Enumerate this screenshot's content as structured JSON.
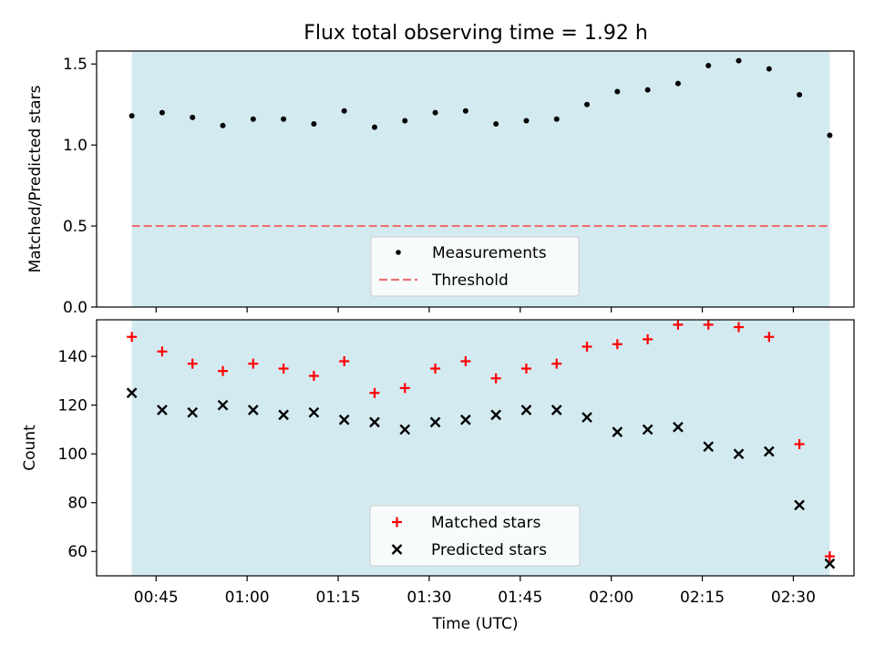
{
  "chart_data": [
    {
      "type": "scatter",
      "title": "Flux total observing time = 1.92 h",
      "xlabel": "",
      "ylabel": "Matched/Predicted stars",
      "ylim": [
        0,
        1.58
      ],
      "yticks": [
        "0.0",
        "0.5",
        "1.0",
        "1.5"
      ],
      "x": [
        "00:41",
        "00:46",
        "00:51",
        "00:56",
        "01:01",
        "01:06",
        "01:11",
        "01:16",
        "01:21",
        "01:26",
        "01:31",
        "01:36",
        "01:41",
        "01:46",
        "01:51",
        "01:56",
        "02:01",
        "02:06",
        "02:11",
        "02:16",
        "02:21",
        "02:26",
        "02:31",
        "02:36"
      ],
      "series": [
        {
          "name": "Measurements",
          "values": [
            1.18,
            1.2,
            1.17,
            1.12,
            1.16,
            1.16,
            1.13,
            1.21,
            1.11,
            1.15,
            1.2,
            1.21,
            1.13,
            1.15,
            1.16,
            1.25,
            1.33,
            1.34,
            1.38,
            1.49,
            1.52,
            1.47,
            1.31,
            1.06
          ],
          "color": "#000000",
          "marker": "dot"
        },
        {
          "name": "Threshold",
          "value": 0.5,
          "color": "#f07070",
          "style": "dashed"
        }
      ],
      "shaded_span": {
        "from": "00:41",
        "to": "02:36",
        "color": "#d4eaf1"
      },
      "legend": "bottom-center",
      "grid": false
    },
    {
      "type": "scatter",
      "xlabel": "Time (UTC)",
      "ylabel": "Count",
      "ylim": [
        50,
        155
      ],
      "yticks": [
        "60",
        "80",
        "100",
        "120",
        "140"
      ],
      "xticks": [
        "00:45",
        "01:00",
        "01:15",
        "01:30",
        "01:45",
        "02:00",
        "02:15",
        "02:30"
      ],
      "x": [
        "00:41",
        "00:46",
        "00:51",
        "00:56",
        "01:01",
        "01:06",
        "01:11",
        "01:16",
        "01:21",
        "01:26",
        "01:31",
        "01:36",
        "01:41",
        "01:46",
        "01:51",
        "01:56",
        "02:01",
        "02:06",
        "02:11",
        "02:16",
        "02:21",
        "02:26",
        "02:31",
        "02:36"
      ],
      "series": [
        {
          "name": "Matched stars",
          "values": [
            148,
            142,
            137,
            134,
            137,
            135,
            132,
            138,
            125,
            127,
            135,
            138,
            131,
            135,
            137,
            144,
            145,
            147,
            153,
            153,
            152,
            148,
            104,
            58
          ],
          "color": "#ff0000",
          "marker": "plus"
        },
        {
          "name": "Predicted stars",
          "values": [
            125,
            118,
            117,
            120,
            118,
            116,
            117,
            114,
            113,
            110,
            113,
            114,
            116,
            118,
            118,
            115,
            109,
            110,
            111,
            103,
            100,
            101,
            79,
            55
          ],
          "color": "#000000",
          "marker": "x"
        }
      ],
      "shaded_span": {
        "from": "00:41",
        "to": "02:36",
        "color": "#d4eaf1"
      },
      "legend": "bottom-center",
      "grid": false
    }
  ]
}
